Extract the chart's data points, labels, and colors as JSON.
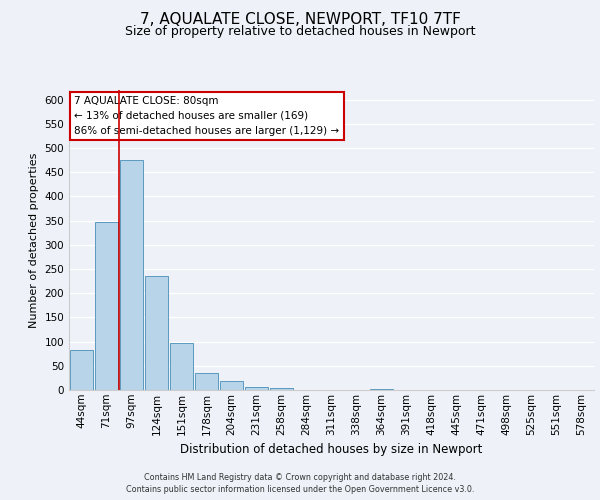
{
  "title": "7, AQUALATE CLOSE, NEWPORT, TF10 7TF",
  "subtitle": "Size of property relative to detached houses in Newport",
  "xlabel": "Distribution of detached houses by size in Newport",
  "ylabel": "Number of detached properties",
  "bar_labels": [
    "44sqm",
    "71sqm",
    "97sqm",
    "124sqm",
    "151sqm",
    "178sqm",
    "204sqm",
    "231sqm",
    "258sqm",
    "284sqm",
    "311sqm",
    "338sqm",
    "364sqm",
    "391sqm",
    "418sqm",
    "445sqm",
    "471sqm",
    "498sqm",
    "525sqm",
    "551sqm",
    "578sqm"
  ],
  "bar_values": [
    83,
    348,
    475,
    236,
    97,
    35,
    18,
    7,
    4,
    0,
    0,
    0,
    2,
    0,
    0,
    0,
    0,
    1,
    0,
    0,
    1
  ],
  "bar_color": "#b8d4e8",
  "bar_edge_color": "#5a9abf",
  "marker_label": "7 AQUALATE CLOSE: 80sqm",
  "annotation_line1": "← 13% of detached houses are smaller (169)",
  "annotation_line2": "86% of semi-detached houses are larger (1,129) →",
  "vline_color": "#cc0000",
  "vline_x": 1.48,
  "ylim": [
    0,
    620
  ],
  "yticks": [
    0,
    50,
    100,
    150,
    200,
    250,
    300,
    350,
    400,
    450,
    500,
    550,
    600
  ],
  "footer_line1": "Contains HM Land Registry data © Crown copyright and database right 2024.",
  "footer_line2": "Contains public sector information licensed under the Open Government Licence v3.0.",
  "background_color": "#eef2f8",
  "plot_background": "#eef2f8",
  "grid_color": "#ffffff",
  "title_fontsize": 11,
  "subtitle_fontsize": 9,
  "ylabel_fontsize": 8,
  "xlabel_fontsize": 8.5,
  "tick_fontsize": 7.5,
  "annot_fontsize": 7.5,
  "footer_fontsize": 5.8
}
